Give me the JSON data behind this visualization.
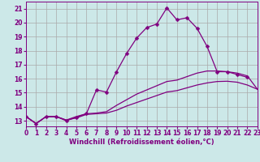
{
  "xlabel": "Windchill (Refroidissement éolien,°C)",
  "bg_color": "#cce8e8",
  "line_color": "#800080",
  "grid_color": "#aaaaaa",
  "xlim": [
    0,
    23
  ],
  "ylim": [
    12.6,
    21.5
  ],
  "yticks": [
    13,
    14,
    15,
    16,
    17,
    18,
    19,
    20,
    21
  ],
  "xticks": [
    0,
    1,
    2,
    3,
    4,
    5,
    6,
    7,
    8,
    9,
    10,
    11,
    12,
    13,
    14,
    15,
    16,
    17,
    18,
    19,
    20,
    21,
    22,
    23
  ],
  "curve_markers": {
    "x": [
      0,
      1,
      2,
      3,
      4,
      5,
      6,
      7,
      8,
      9,
      10,
      11,
      12,
      13,
      14,
      15,
      16,
      17,
      18,
      19,
      20,
      21,
      22
    ],
    "y": [
      13.3,
      12.8,
      13.3,
      13.3,
      13.0,
      13.25,
      13.5,
      15.2,
      15.05,
      16.5,
      17.8,
      18.9,
      19.65,
      19.9,
      21.05,
      20.2,
      20.35,
      19.6,
      18.3,
      16.5,
      16.5,
      16.3,
      16.1
    ]
  },
  "curve_top": {
    "x": [
      0,
      1,
      2,
      3,
      4,
      5,
      6,
      7,
      8,
      9,
      10,
      11,
      12,
      13,
      14,
      15,
      16,
      17,
      18,
      19,
      20,
      21,
      22,
      23
    ],
    "y": [
      13.3,
      12.8,
      13.3,
      13.3,
      13.05,
      13.3,
      13.5,
      13.55,
      13.65,
      14.1,
      14.5,
      14.9,
      15.2,
      15.5,
      15.8,
      15.9,
      16.15,
      16.4,
      16.55,
      16.55,
      16.5,
      16.4,
      16.2,
      15.25
    ]
  },
  "curve_bottom": {
    "x": [
      0,
      1,
      2,
      3,
      4,
      5,
      6,
      7,
      8,
      9,
      10,
      11,
      12,
      13,
      14,
      15,
      16,
      17,
      18,
      19,
      20,
      21,
      22,
      23
    ],
    "y": [
      13.3,
      12.8,
      13.3,
      13.3,
      13.05,
      13.2,
      13.45,
      13.5,
      13.55,
      13.75,
      14.05,
      14.3,
      14.55,
      14.8,
      15.05,
      15.15,
      15.35,
      15.55,
      15.7,
      15.8,
      15.82,
      15.75,
      15.55,
      15.25
    ]
  },
  "tick_fontsize": 5.5,
  "xlabel_fontsize": 6.0
}
